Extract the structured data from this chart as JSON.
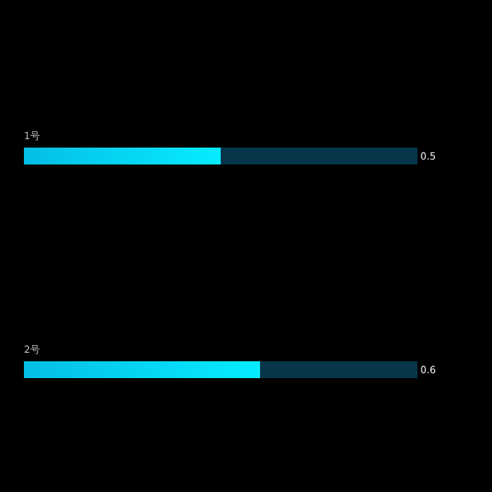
{
  "chart_data": {
    "type": "bar",
    "orientation": "horizontal",
    "stacked": true,
    "categories": [
      "1号",
      "2号"
    ],
    "xlim": [
      0,
      1
    ],
    "tick_labels": false,
    "grid": false,
    "series": [
      {
        "color": "#05d4ff",
        "values": [
          0.5,
          0.6
        ],
        "value_labels": [
          "0.5",
          "0.6"
        ]
      },
      {
        "color": "#073549",
        "values": [
          0.5,
          0.4
        ]
      }
    ]
  }
}
